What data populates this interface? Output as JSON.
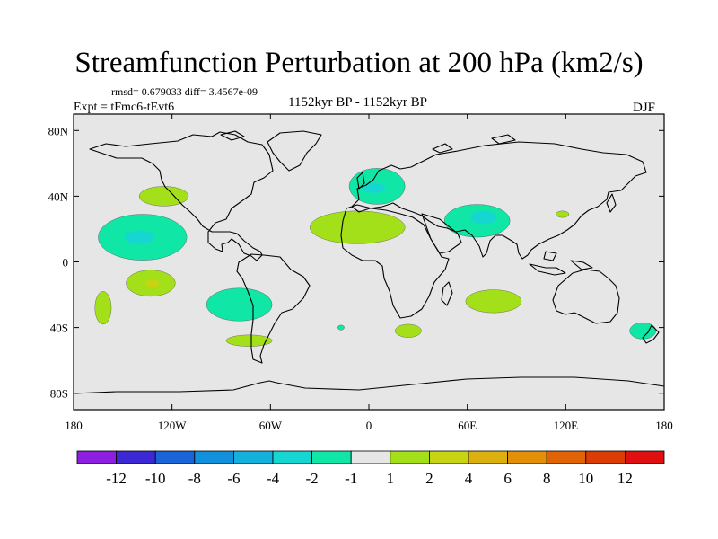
{
  "title": "Streamfunction Perturbation at 200 hPa (km2/s)",
  "stats": "rmsd= 0.679033  diff= 3.4567e-09",
  "experiment": "Expt = tFmc6-tEvt6",
  "period": "1152kyr BP - 1152kyr BP",
  "season": "DJF",
  "chart_data": {
    "type": "contour_map",
    "projection": "cylindrical equidistant",
    "lon_range": [
      -180,
      180
    ],
    "lat_range": [
      -90,
      90
    ],
    "x_ticks": [
      {
        "value": -180,
        "label": "180"
      },
      {
        "value": -120,
        "label": "120W"
      },
      {
        "value": -60,
        "label": "60W"
      },
      {
        "value": 0,
        "label": "0"
      },
      {
        "value": 60,
        "label": "60E"
      },
      {
        "value": 120,
        "label": "120E"
      },
      {
        "value": 180,
        "label": "180"
      }
    ],
    "y_ticks": [
      {
        "value": 80,
        "label": "80N"
      },
      {
        "value": 40,
        "label": "40N"
      },
      {
        "value": 0,
        "label": "0"
      },
      {
        "value": -40,
        "label": "40S"
      },
      {
        "value": -80,
        "label": "80S"
      }
    ],
    "colorbar": {
      "colors": [
        "#8c1fe0",
        "#3d28d6",
        "#1a64d8",
        "#1290dc",
        "#16b0dc",
        "#16d6d2",
        "#10e6a6",
        "#e6e6e6",
        "#a4e01a",
        "#c6d414",
        "#dcb00e",
        "#e2900a",
        "#e06406",
        "#dc3c06",
        "#e01010"
      ],
      "labels": [
        "-12",
        "-10",
        "-8",
        "-6",
        "-4",
        "-2",
        "-1",
        "1",
        "2",
        "4",
        "6",
        "8",
        "10",
        "12"
      ]
    },
    "anomalies": [
      {
        "name": "nw-pacific-positive",
        "lon": -125,
        "lat": 40,
        "rx": 15,
        "ry": 6,
        "level": 2
      },
      {
        "name": "central-pacific-negative",
        "lon": -138,
        "lat": 15,
        "rx": 27,
        "ry": 14,
        "level": -1,
        "core": {
          "lon": -140,
          "lat": 15,
          "rx": 9,
          "ry": 4,
          "level": -2
        }
      },
      {
        "name": "south-pacific-positive",
        "lon": -133,
        "lat": -13,
        "rx": 15,
        "ry": 8,
        "level": 2,
        "core": {
          "lon": -132,
          "lat": -13,
          "rx": 4,
          "ry": 2.5,
          "level": 4
        }
      },
      {
        "name": "southwest-pacific-positive",
        "lon": -162,
        "lat": -28,
        "rx": 5,
        "ry": 10,
        "level": 2
      },
      {
        "name": "southeast-pacific-negative",
        "lon": -79,
        "lat": -26,
        "rx": 20,
        "ry": 10,
        "level": -1
      },
      {
        "name": "south-america-positive",
        "lon": -73,
        "lat": -48,
        "rx": 14,
        "ry": 3.5,
        "level": 2
      },
      {
        "name": "europe-negative",
        "lon": 5,
        "lat": 46,
        "rx": 17,
        "ry": 11,
        "level": -1,
        "core": {
          "lon": 3,
          "lat": 45,
          "rx": 7,
          "ry": 3,
          "level": -2
        }
      },
      {
        "name": "north-africa-positive",
        "lon": -7,
        "lat": 21,
        "rx": 29,
        "ry": 10,
        "level": 2
      },
      {
        "name": "middle-east-negative",
        "lon": 66,
        "lat": 25,
        "rx": 20,
        "ry": 10,
        "level": -1,
        "core": {
          "lon": 70,
          "lat": 27,
          "rx": 8,
          "ry": 4,
          "level": -2
        }
      },
      {
        "name": "east-asia-positive",
        "lon": 118,
        "lat": 29,
        "rx": 4,
        "ry": 2,
        "level": 2
      },
      {
        "name": "south-indian-ocean-positive",
        "lon": 76,
        "lat": -24,
        "rx": 17,
        "ry": 7,
        "level": 2
      },
      {
        "name": "south-atlantic-positive",
        "lon": 24,
        "lat": -42,
        "rx": 8,
        "ry": 4,
        "level": 2
      },
      {
        "name": "mid-atlantic-negative",
        "lon": -17,
        "lat": -40,
        "rx": 2,
        "ry": 1.5,
        "level": -1
      },
      {
        "name": "new-zealand-negative",
        "lon": 167,
        "lat": -42,
        "rx": 8,
        "ry": 5,
        "level": -1
      }
    ]
  }
}
